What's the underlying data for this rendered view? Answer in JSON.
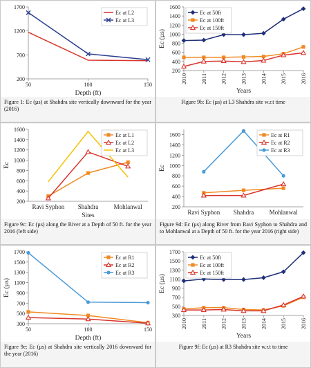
{
  "chart_data": [
    {
      "type": "line",
      "caption": "Figure 1: Ec (µs) at Shahdra site vertically downward for the year (2016)",
      "x_label": "Depth (ft)",
      "x": [
        50,
        100,
        150
      ],
      "xlim": [
        50,
        150
      ],
      "xticks": [
        50,
        100,
        150
      ],
      "ylim": [
        200,
        1700
      ],
      "yticks": [
        200,
        700,
        1200,
        1700
      ],
      "legend": "upper right",
      "series": [
        {
          "name": "Ec at L2",
          "color": "#d9342b",
          "marker": "none",
          "values": [
            1170,
            590,
            580
          ]
        },
        {
          "name": "Ec at L3",
          "color": "#2a3f8f",
          "marker": "x",
          "values": [
            1580,
            720,
            600
          ]
        }
      ]
    },
    {
      "type": "line",
      "caption": "Figure 9b: Ec (µs) at L3 Shahdra site w.r.t time",
      "x_label": "Years",
      "y_label": "Ec (µs)",
      "x": [
        2010,
        2011,
        2012,
        2013,
        2014,
        2015,
        2016
      ],
      "xlim": [
        2010,
        2016
      ],
      "xticks": [
        2010,
        2011,
        2012,
        2013,
        2014,
        2015,
        2016
      ],
      "xtick_rotation": 90,
      "ylim": [
        200,
        1600
      ],
      "yticks": [
        200,
        400,
        600,
        800,
        1000,
        1200,
        1400,
        1600
      ],
      "legend": "upper left",
      "series": [
        {
          "name": "Ec  at 50ft",
          "color": "#1f2f7a",
          "marker": "diamond",
          "values": [
            860,
            870,
            990,
            990,
            1020,
            1330,
            1560
          ]
        },
        {
          "name": "Ec  at 100ft",
          "color": "#f08a24",
          "marker": "square",
          "values": [
            490,
            490,
            490,
            500,
            510,
            570,
            720
          ]
        },
        {
          "name": "Ec  at 150ft",
          "color": "#d9342b",
          "marker": "triangle",
          "values": [
            290,
            400,
            410,
            390,
            420,
            540,
            590
          ]
        }
      ]
    },
    {
      "type": "line",
      "caption": "Figure 9c: Ec (µs) along the River at a Depth of 50 ft. for the year 2016 (left side)",
      "x_label": "Sites",
      "y_label": "Ec",
      "categories": [
        "Ravi Syphon",
        "Shahdra",
        "Mohlanwal"
      ],
      "ylim": [
        200,
        1600
      ],
      "yticks": [
        200,
        400,
        600,
        800,
        1000,
        1200,
        1400,
        1600
      ],
      "legend": "upper right",
      "series": [
        {
          "name": "Ec at L1",
          "color": "#f08a24",
          "marker": "square",
          "values": [
            300,
            750,
            960
          ]
        },
        {
          "name": "Ec at L2",
          "color": "#d9342b",
          "marker": "triangle",
          "values": [
            260,
            1160,
            880
          ]
        },
        {
          "name": "Ec at L3",
          "color": "#f2c200",
          "marker": "none",
          "values": [
            580,
            1560,
            670
          ]
        }
      ]
    },
    {
      "type": "line",
      "caption": "Figure 9d: Ec (µs) along River from Ravi Syphon to Shahdra and to Mohlanwal at a Depth of 50 ft. for the year 2016 (right side)",
      "y_label": "Ec",
      "categories": [
        "Ravi Syphon",
        "Shahdra",
        "Mohlanwal"
      ],
      "ylim": [
        200,
        1700
      ],
      "yticks": [
        200,
        400,
        600,
        800,
        1000,
        1200,
        1400,
        1600
      ],
      "legend": "upper right",
      "series": [
        {
          "name": "Ec  at R1",
          "color": "#f08a24",
          "marker": "square",
          "values": [
            470,
            520,
            560
          ]
        },
        {
          "name": "Ec  at R2",
          "color": "#d9342b",
          "marker": "triangle",
          "values": [
            420,
            420,
            640
          ]
        },
        {
          "name": "Ec  at R3",
          "color": "#4a9bd8",
          "marker": "circle",
          "values": [
            880,
            1670,
            800
          ]
        }
      ]
    },
    {
      "type": "line",
      "caption": "Figure 9e: Ec (µs) at Shahdra site vertically 2016 downward for the year (2016)",
      "x_label": "Depth (ft)",
      "y_label": "Ec (µs)",
      "x": [
        50,
        100,
        150
      ],
      "xlim": [
        50,
        150
      ],
      "xticks": [
        50,
        100,
        150
      ],
      "ylim": [
        300,
        1700
      ],
      "yticks": [
        300,
        500,
        700,
        900,
        1100,
        1300,
        1500,
        1700
      ],
      "legend": "upper right",
      "series": [
        {
          "name": "Ec  at R1",
          "color": "#f08a24",
          "marker": "square",
          "values": [
            530,
            460,
            320
          ]
        },
        {
          "name": "Ec  at R2",
          "color": "#d9342b",
          "marker": "triangle",
          "values": [
            420,
            390,
            310
          ]
        },
        {
          "name": "Ec  at R3",
          "color": "#4a9bd8",
          "marker": "circle",
          "values": [
            1680,
            720,
            710
          ]
        }
      ]
    },
    {
      "type": "line",
      "caption": "Figure 9f: Ec (µs) at R3 Shahdra site w.r.t to time",
      "x_label": "Years",
      "y_label": "Ec (µs)",
      "x": [
        2010,
        2011,
        2012,
        2013,
        2014,
        2015,
        2016
      ],
      "xlim": [
        2010,
        2016
      ],
      "xticks": [
        2010,
        2011,
        2012,
        2013,
        2014,
        2015,
        2016
      ],
      "xtick_rotation": 90,
      "ylim": [
        300,
        1700
      ],
      "yticks": [
        300,
        500,
        700,
        900,
        1100,
        1300,
        1500,
        1700
      ],
      "legend": "upper left",
      "series": [
        {
          "name": "Ec  at 50ft",
          "color": "#1f2f7a",
          "marker": "diamond",
          "values": [
            1060,
            1100,
            1090,
            1090,
            1130,
            1260,
            1680
          ]
        },
        {
          "name": "Ec  at 100ft",
          "color": "#f08a24",
          "marker": "square",
          "values": [
            440,
            470,
            470,
            430,
            420,
            510,
            700
          ]
        },
        {
          "name": "Ec  at 150ft",
          "color": "#d9342b",
          "marker": "triangle",
          "values": [
            420,
            420,
            430,
            400,
            400,
            530,
            720
          ]
        }
      ]
    }
  ]
}
